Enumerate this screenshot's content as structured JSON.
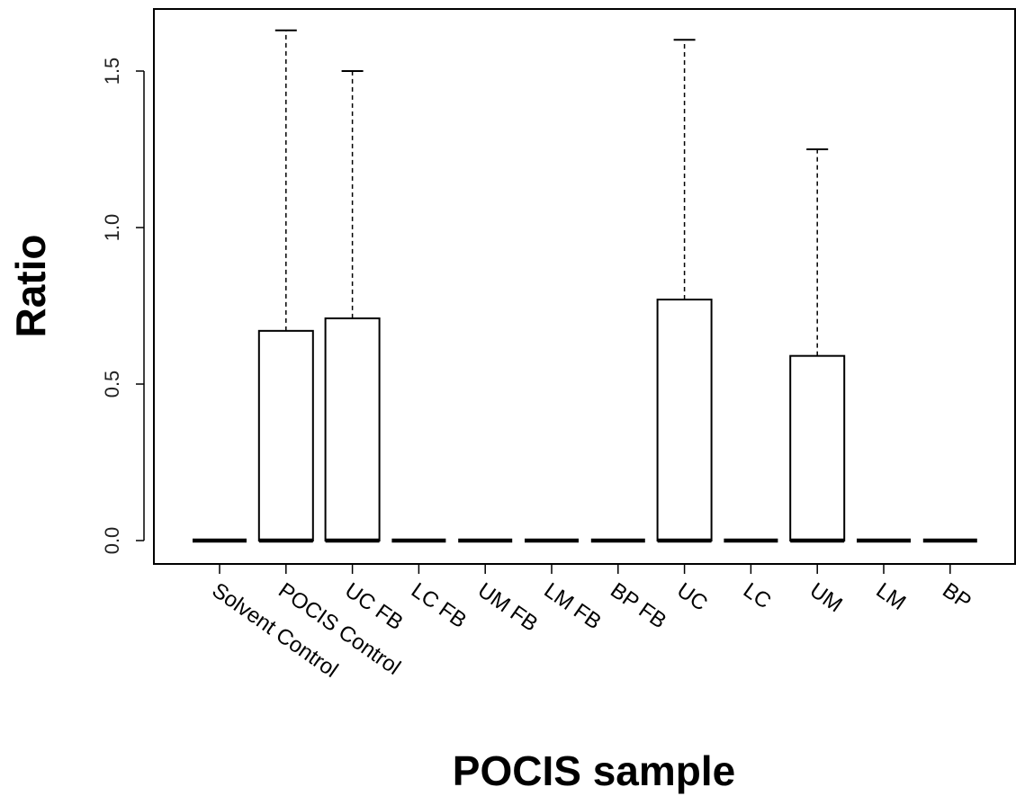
{
  "chart_data": {
    "type": "boxplot",
    "title": "",
    "xlabel": "POCIS sample",
    "ylabel": "Ratio",
    "ylim": [
      -0.07,
      1.72
    ],
    "yticks": [
      "0.0",
      "0.5",
      "1.0",
      "1.5"
    ],
    "ytick_values": [
      0.0,
      0.5,
      1.0,
      1.5
    ],
    "categories": [
      "Solvent Control",
      "POCIS Control",
      "UC FB",
      "LC FB",
      "UM FB",
      "LM FB",
      "BP FB",
      "UC",
      "LC",
      "UM",
      "LM",
      "BP"
    ],
    "boxes": [
      {
        "min": 0,
        "q1": 0,
        "median": 0,
        "q3": 0,
        "max": 0
      },
      {
        "min": 0,
        "q1": 0,
        "median": 0,
        "q3": 0.67,
        "max": 1.63
      },
      {
        "min": 0,
        "q1": 0,
        "median": 0,
        "q3": 0.71,
        "max": 1.5
      },
      {
        "min": 0,
        "q1": 0,
        "median": 0,
        "q3": 0,
        "max": 0
      },
      {
        "min": 0,
        "q1": 0,
        "median": 0,
        "q3": 0,
        "max": 0
      },
      {
        "min": 0,
        "q1": 0,
        "median": 0,
        "q3": 0,
        "max": 0
      },
      {
        "min": 0,
        "q1": 0,
        "median": 0,
        "q3": 0,
        "max": 0
      },
      {
        "min": 0,
        "q1": 0,
        "median": 0,
        "q3": 0.77,
        "max": 1.6
      },
      {
        "min": 0,
        "q1": 0,
        "median": 0,
        "q3": 0,
        "max": 0
      },
      {
        "min": 0,
        "q1": 0,
        "median": 0,
        "q3": 0.59,
        "max": 1.25
      },
      {
        "min": 0,
        "q1": 0,
        "median": 0,
        "q3": 0,
        "max": 0
      },
      {
        "min": 0,
        "q1": 0,
        "median": 0,
        "q3": 0,
        "max": 0
      }
    ],
    "grid": false,
    "legend": "none"
  }
}
